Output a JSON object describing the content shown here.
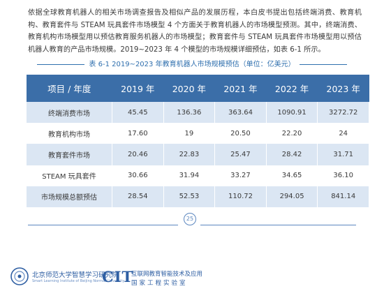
{
  "paragraph": "依据全球教育机器人的相关市场调查报告及相似产品的发展历程，本白皮书提出包括终端消费、教育机构、教育套件与 STEAM 玩具套件市场模型 4 个方面关于教育机器人的市场模型预测。其中，终端消费、教育机构市场模型用以预估教育服务机器人的市场模型；教育套件与 STEAM 玩具套件市场模型用以预估机器人教育的产品市场规模。2019~2023 年 4 个模型的市场规模详细预估，如表 6-1 所示。",
  "caption": "表 6-1  2019~2023 年教育机器人市场规模预估（单位：亿美元）",
  "table": {
    "headers": [
      "项目 / 年度",
      "2019 年",
      "2020 年",
      "2021 年",
      "2022 年",
      "2023 年"
    ],
    "rows": [
      [
        "终端消费市场",
        "45.45",
        "136.36",
        "363.64",
        "1090.91",
        "3272.72"
      ],
      [
        "教育机构市场",
        "17.60",
        "19",
        "20.50",
        "22.20",
        "24"
      ],
      [
        "教育套件市场",
        "20.46",
        "22.83",
        "25.47",
        "28.42",
        "31.71"
      ],
      [
        "STEAM 玩具套件",
        "30.66",
        "31.94",
        "33.27",
        "34.65",
        "36.10"
      ],
      [
        "市场规模总额预估",
        "28.54",
        "52.53",
        "110.72",
        "294.05",
        "841.14"
      ]
    ]
  },
  "page_number": "25",
  "footer": {
    "logo1_cn": "北京师范大学智慧学习研究院",
    "logo1_en": "Smart Learning Institute of Beijing Normal University",
    "logo2_mark": "CIT",
    "logo2_line1": "互联网教育智能技术及应用",
    "logo2_line2": "国家工程实验室"
  },
  "colors": {
    "header_bg": "#3b6ea8",
    "row_shade": "#dbe6f3",
    "accent": "#2f6fae"
  }
}
